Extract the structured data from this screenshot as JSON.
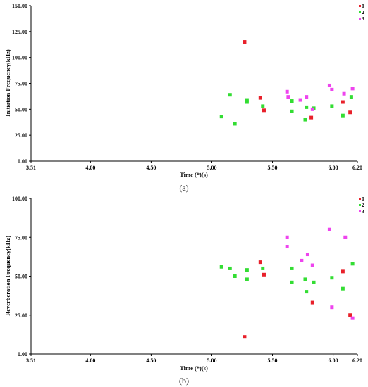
{
  "chart_data": [
    {
      "type": "scatter",
      "caption": "(a)",
      "xlabel": "Time (*)(s)",
      "ylabel": "Initiation Frequency(kHz)",
      "xlim": [
        3.51,
        6.2
      ],
      "ylim": [
        0,
        150
      ],
      "xticks": [
        "3.51",
        "4.00",
        "4.50",
        "5.00",
        "5.50",
        "6.00",
        "6.20"
      ],
      "xtick_values": [
        3.51,
        4.0,
        4.5,
        5.0,
        5.5,
        6.0,
        6.2
      ],
      "yticks": [
        "0.00",
        "25.00",
        "50.00",
        "75.00",
        "100.00",
        "125.00",
        "150.00"
      ],
      "ytick_values": [
        0,
        25,
        50,
        75,
        100,
        125,
        150
      ],
      "grid": false,
      "legend_position": "top-right",
      "series": [
        {
          "name": "0",
          "color": "#e8202a",
          "points": [
            [
              5.27,
              115
            ],
            [
              5.4,
              61
            ],
            [
              5.43,
              49
            ],
            [
              5.82,
              42
            ],
            [
              6.08,
              57
            ],
            [
              6.14,
              47
            ]
          ]
        },
        {
          "name": "2",
          "color": "#33dd33",
          "points": [
            [
              5.08,
              43
            ],
            [
              5.15,
              64
            ],
            [
              5.19,
              36
            ],
            [
              5.29,
              57
            ],
            [
              5.29,
              59
            ],
            [
              5.42,
              53
            ],
            [
              5.66,
              58
            ],
            [
              5.66,
              48
            ],
            [
              5.77,
              40
            ],
            [
              5.78,
              52
            ],
            [
              5.84,
              51
            ],
            [
              5.99,
              53
            ],
            [
              6.08,
              44
            ],
            [
              6.15,
              62
            ]
          ]
        },
        {
          "name": "3",
          "color": "#ee44ee",
          "points": [
            [
              5.62,
              67
            ],
            [
              5.63,
              62
            ],
            [
              5.73,
              59
            ],
            [
              5.78,
              62
            ],
            [
              5.83,
              50
            ],
            [
              5.97,
              73
            ],
            [
              5.99,
              69
            ],
            [
              6.09,
              65
            ],
            [
              6.16,
              70
            ]
          ]
        }
      ]
    },
    {
      "type": "scatter",
      "caption": "(b)",
      "xlabel": "Time (*)(s)",
      "ylabel": "Reverberation Frequency(kHz)",
      "xlim": [
        3.51,
        6.2
      ],
      "ylim": [
        0,
        100
      ],
      "xticks": [
        "3.51",
        "4.00",
        "4.50",
        "5.00",
        "5.50",
        "6.00",
        "6.20"
      ],
      "xtick_values": [
        3.51,
        4.0,
        4.5,
        5.0,
        5.5,
        6.0,
        6.2
      ],
      "yticks": [
        "0.00",
        "25.00",
        "50.00",
        "75.00",
        "100.00"
      ],
      "ytick_values": [
        0,
        25,
        50,
        75,
        100
      ],
      "grid": false,
      "legend_position": "top-right",
      "series": [
        {
          "name": "0",
          "color": "#e8202a",
          "points": [
            [
              5.27,
              11
            ],
            [
              5.4,
              59
            ],
            [
              5.43,
              51
            ],
            [
              5.83,
              33
            ],
            [
              6.08,
              53
            ],
            [
              6.14,
              25
            ]
          ]
        },
        {
          "name": "2",
          "color": "#33dd33",
          "points": [
            [
              5.08,
              56
            ],
            [
              5.15,
              55
            ],
            [
              5.19,
              50
            ],
            [
              5.29,
              54
            ],
            [
              5.29,
              48
            ],
            [
              5.42,
              55
            ],
            [
              5.66,
              55
            ],
            [
              5.66,
              46
            ],
            [
              5.77,
              48
            ],
            [
              5.78,
              40
            ],
            [
              5.84,
              46
            ],
            [
              5.99,
              49
            ],
            [
              6.08,
              42
            ],
            [
              6.16,
              58
            ]
          ]
        },
        {
          "name": "3",
          "color": "#ee44ee",
          "points": [
            [
              5.62,
              75
            ],
            [
              5.62,
              69
            ],
            [
              5.74,
              60
            ],
            [
              5.79,
              64
            ],
            [
              5.83,
              57
            ],
            [
              5.97,
              80
            ],
            [
              5.99,
              30
            ],
            [
              6.1,
              75
            ],
            [
              6.16,
              23
            ]
          ]
        }
      ]
    }
  ]
}
